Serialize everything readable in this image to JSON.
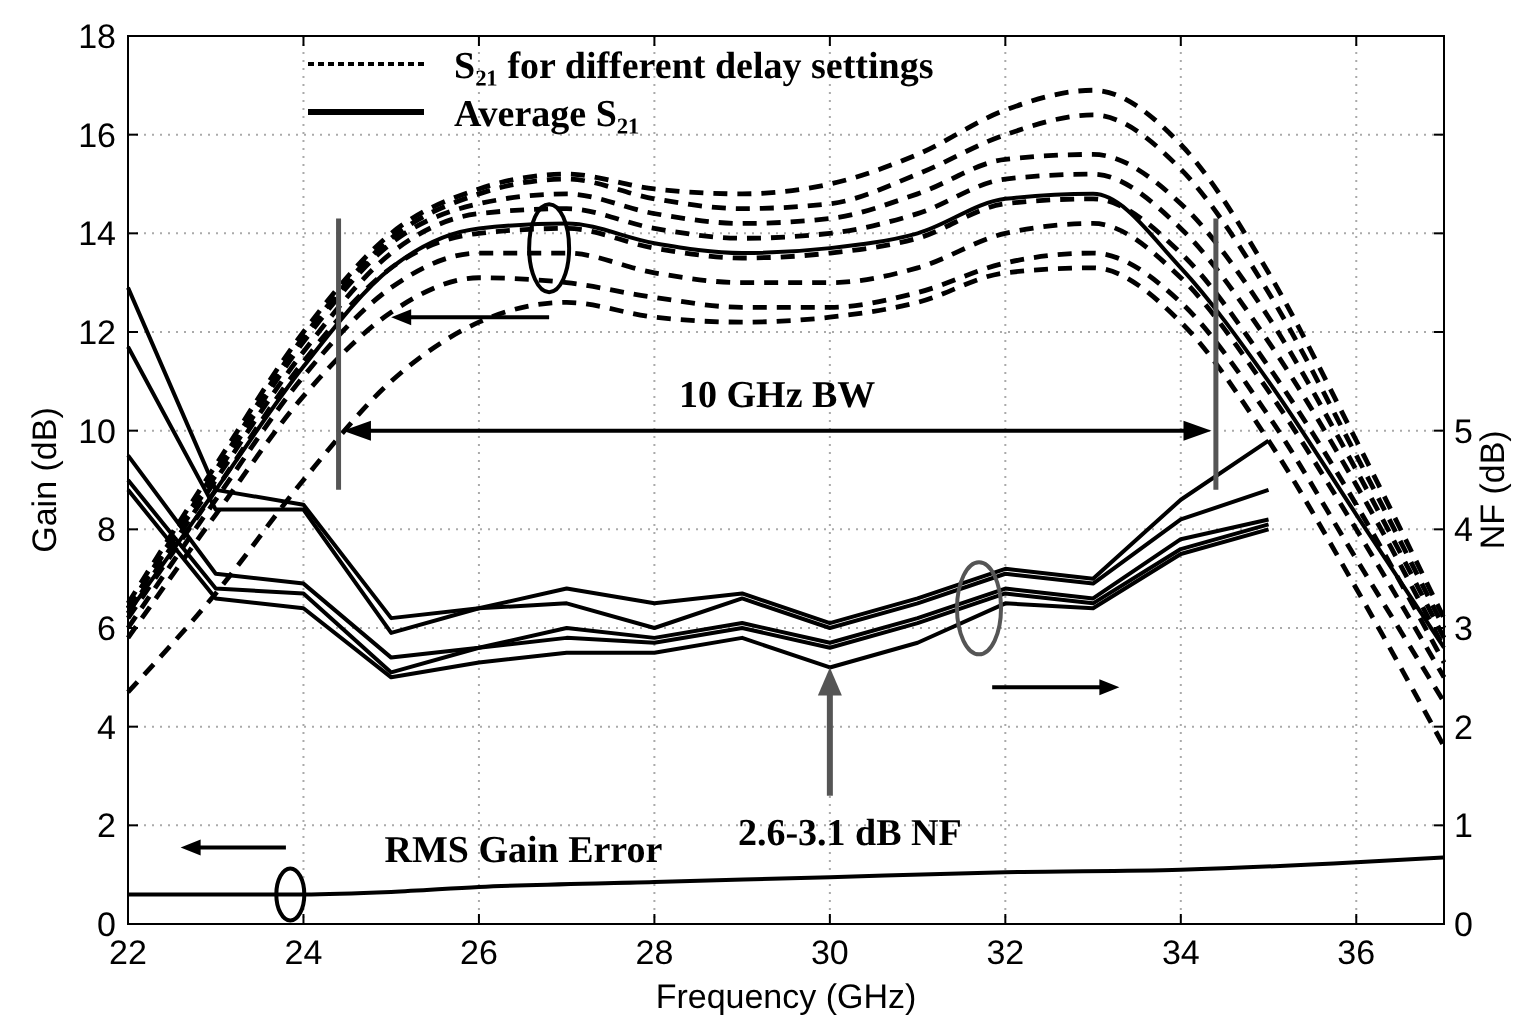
{
  "chart_data": {
    "type": "line",
    "xlabel": "Frequency (GHz)",
    "ylabel": "Gain (dB)",
    "y2label": "NF (dB)",
    "x": [
      22,
      23,
      24,
      25,
      26,
      27,
      28,
      29,
      30,
      31,
      32,
      33,
      34,
      35,
      36,
      37
    ],
    "xlim": [
      22,
      37
    ],
    "xticks": [
      22,
      24,
      26,
      28,
      30,
      32,
      34,
      36
    ],
    "ylim": [
      0,
      18
    ],
    "yticks": [
      0,
      2,
      4,
      6,
      8,
      10,
      12,
      14,
      16,
      18
    ],
    "y2lim": [
      0,
      9
    ],
    "y2ticks": [
      0,
      1,
      2,
      3,
      4,
      5,
      {
        "value": 6,
        "label": null
      },
      {
        "value": 7,
        "label": null
      },
      {
        "value": 8,
        "label": null
      }
    ],
    "grid": true,
    "legend": "top left",
    "series": [
      {
        "name": "S₂₁ for different delay settings",
        "color": "#000000",
        "line_style": "dashed",
        "values": [
          6.5,
          9.3,
          12.0,
          14.0,
          14.9,
          15.2,
          14.9,
          14.8,
          15.0,
          15.6,
          16.5,
          16.9,
          15.8,
          13.2,
          9.8,
          6.2
        ]
      },
      {
        "color": "#000000",
        "line_style": "dashed",
        "values": [
          6.4,
          9.2,
          11.9,
          13.9,
          14.8,
          15.1,
          14.7,
          14.5,
          14.6,
          15.2,
          16.0,
          16.4,
          15.3,
          12.8,
          9.5,
          6.0
        ]
      },
      {
        "color": "#000000",
        "line_style": "dashed",
        "values": [
          6.4,
          9.1,
          11.8,
          13.8,
          14.6,
          14.8,
          14.4,
          14.2,
          14.3,
          14.8,
          15.5,
          15.6,
          14.6,
          12.3,
          9.2,
          5.8
        ]
      },
      {
        "color": "#000000",
        "line_style": "dashed",
        "values": [
          6.3,
          9.0,
          11.6,
          13.6,
          14.4,
          14.5,
          14.1,
          13.9,
          14.0,
          14.4,
          15.1,
          15.2,
          14.1,
          11.8,
          8.9,
          5.6
        ]
      },
      {
        "color": "#000000",
        "line_style": "dashed",
        "values": [
          6.2,
          8.8,
          11.4,
          13.3,
          14.0,
          14.1,
          13.7,
          13.5,
          13.6,
          13.9,
          14.6,
          14.7,
          13.6,
          11.3,
          8.5,
          5.3
        ]
      },
      {
        "color": "#000000",
        "line_style": "dashed",
        "values": [
          6.0,
          8.6,
          11.1,
          12.9,
          13.6,
          13.6,
          13.2,
          13.0,
          13.0,
          13.3,
          14.0,
          14.2,
          13.1,
          10.8,
          8.0,
          5.0
        ]
      },
      {
        "color": "#000000",
        "line_style": "dashed",
        "values": [
          5.8,
          8.3,
          10.7,
          12.4,
          13.1,
          13.0,
          12.7,
          12.5,
          12.5,
          12.8,
          13.4,
          13.6,
          12.6,
          10.3,
          7.4,
          4.5
        ]
      },
      {
        "color": "#000000",
        "line_style": "dashed",
        "values": [
          4.7,
          6.7,
          9.0,
          11.0,
          12.2,
          12.6,
          12.3,
          12.2,
          12.3,
          12.6,
          13.2,
          13.3,
          12.2,
          9.8,
          6.8,
          3.6
        ]
      },
      {
        "name": "Average S₂₁",
        "color": "#000000",
        "line_style": "solid",
        "values": [
          6.3,
          8.8,
          11.3,
          13.3,
          14.1,
          14.2,
          13.8,
          13.6,
          13.7,
          14.0,
          14.7,
          14.8,
          13.3,
          11.0,
          8.3,
          5.6
        ]
      },
      {
        "color": "#000000",
        "line_style": "solid",
        "axis": "y2",
        "x": [
          22,
          23,
          24,
          25,
          26,
          27,
          28,
          29,
          30,
          31,
          32,
          33,
          34,
          35
        ],
        "values": [
          6.45,
          4.4,
          4.25,
          3.1,
          3.2,
          3.4,
          3.25,
          3.35,
          3.05,
          3.3,
          3.6,
          3.5,
          4.3,
          4.9
        ]
      },
      {
        "color": "#000000",
        "line_style": "solid",
        "axis": "y2",
        "x": [
          22,
          23,
          24,
          25,
          26,
          27,
          28,
          29,
          30,
          31,
          32,
          33,
          34,
          35
        ],
        "values": [
          5.85,
          4.2,
          4.2,
          2.95,
          3.2,
          3.25,
          3.0,
          3.3,
          3.0,
          3.25,
          3.55,
          3.45,
          4.1,
          4.4
        ]
      },
      {
        "color": "#000000",
        "line_style": "solid",
        "axis": "y2",
        "x": [
          22,
          23,
          24,
          25,
          26,
          27,
          28,
          29,
          30,
          31,
          32,
          33,
          34,
          35
        ],
        "values": [
          4.75,
          3.55,
          3.45,
          2.7,
          2.8,
          3.0,
          2.9,
          3.05,
          2.85,
          3.1,
          3.4,
          3.3,
          3.9,
          4.1
        ]
      },
      {
        "color": "#000000",
        "line_style": "solid",
        "axis": "y2",
        "x": [
          22,
          23,
          24,
          25,
          26,
          27,
          28,
          29,
          30,
          31,
          32,
          33,
          34,
          35
        ],
        "values": [
          4.5,
          3.4,
          3.35,
          2.55,
          2.8,
          2.9,
          2.85,
          3.0,
          2.8,
          3.05,
          3.35,
          3.25,
          3.8,
          4.05
        ]
      },
      {
        "color": "#000000",
        "line_style": "solid",
        "axis": "y2",
        "x": [
          22,
          23,
          24,
          25,
          26,
          27,
          28,
          29,
          30,
          31,
          32,
          33,
          34,
          35
        ],
        "values": [
          4.4,
          3.3,
          3.2,
          2.5,
          2.65,
          2.75,
          2.75,
          2.9,
          2.6,
          2.85,
          3.25,
          3.2,
          3.75,
          4.0
        ]
      },
      {
        "color": "#000000",
        "line_style": "solid",
        "x": [
          22,
          24,
          25,
          26,
          28,
          30,
          32,
          34,
          36,
          37
        ],
        "values": [
          0.6,
          0.6,
          0.65,
          0.75,
          0.85,
          0.95,
          1.05,
          1.1,
          1.25,
          1.35
        ]
      }
    ],
    "annotations": [
      "10 GHz BW",
      "2.6-3.1 dB NF",
      "RMS Gain Error"
    ]
  }
}
